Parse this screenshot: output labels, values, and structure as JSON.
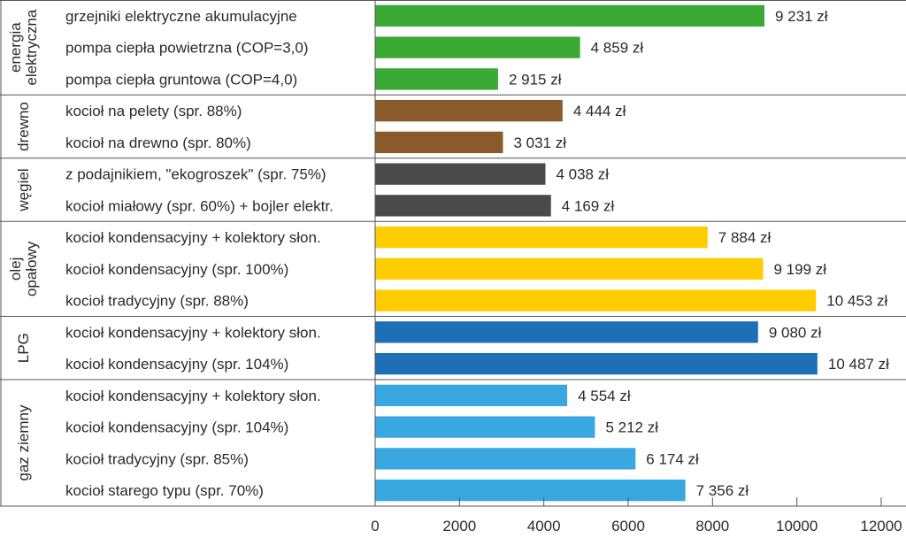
{
  "chart_data": {
    "type": "bar",
    "orientation": "horizontal",
    "title": "",
    "xlabel": "",
    "ylabel": "",
    "xlim": [
      0,
      12000
    ],
    "xticks": [
      0,
      2000,
      4000,
      6000,
      8000,
      10000,
      12000
    ],
    "value_suffix": " zł",
    "groups": [
      {
        "name": "energia elektryczna",
        "name_lines": [
          "energia",
          "elektryczna"
        ],
        "color": "#3aaa35",
        "items": [
          {
            "label": "grzejniki elektryczne akumulacyjne",
            "value": 9231,
            "value_label": "9 231 zł"
          },
          {
            "label": "pompa ciepła powietrzna (COP=3,0)",
            "value": 4859,
            "value_label": "4 859 zł"
          },
          {
            "label": "pompa ciepła gruntowa (COP=4,0)",
            "value": 2915,
            "value_label": "2 915 zł"
          }
        ]
      },
      {
        "name": "drewno",
        "name_lines": [
          "drewno"
        ],
        "color": "#8b5a2b",
        "items": [
          {
            "label": "kocioł na pelety (spr. 88%)",
            "value": 4444,
            "value_label": "4 444 zł"
          },
          {
            "label": "kocioł na drewno (spr. 80%)",
            "value": 3031,
            "value_label": "3 031 zł"
          }
        ]
      },
      {
        "name": "węgiel",
        "name_lines": [
          "węgiel"
        ],
        "color": "#4a4a4a",
        "items": [
          {
            "label": "z podajnikiem, \"ekogroszek\" (spr. 75%)",
            "value": 4038,
            "value_label": "4 038 zł"
          },
          {
            "label": "kocioł miałowy (spr. 60%) + bojler elektr.",
            "value": 4169,
            "value_label": "4 169 zł"
          }
        ]
      },
      {
        "name": "olej opałowy",
        "name_lines": [
          "olej",
          "opałowy"
        ],
        "color": "#ffcc00",
        "items": [
          {
            "label": "kocioł kondensacyjny + kolektory słon.",
            "value": 7884,
            "value_label": "7 884 zł"
          },
          {
            "label": "kocioł kondensacyjny (spr. 100%)",
            "value": 9199,
            "value_label": "9 199 zł"
          },
          {
            "label": "kocioł tradycyjny (spr. 88%)",
            "value": 10453,
            "value_label": "10 453 zł"
          }
        ]
      },
      {
        "name": "LPG",
        "name_lines": [
          "LPG"
        ],
        "color": "#1f6fb7",
        "items": [
          {
            "label": "kocioł kondensacyjny + kolektory słon.",
            "value": 9080,
            "value_label": "9 080 zł"
          },
          {
            "label": "kocioł kondensacyjny (spr. 104%)",
            "value": 10487,
            "value_label": "10 487 zł"
          }
        ]
      },
      {
        "name": "gaz ziemny",
        "name_lines": [
          "gaz ziemny"
        ],
        "color": "#3aa8e0",
        "items": [
          {
            "label": "kocioł kondensacyjny + kolektory słon.",
            "value": 4554,
            "value_label": "4 554 zł"
          },
          {
            "label": "kocioł kondensacyjny (spr. 104%)",
            "value": 5212,
            "value_label": "5 212 zł"
          },
          {
            "label": "kocioł tradycyjny (spr. 85%)",
            "value": 6174,
            "value_label": "6 174 zł"
          },
          {
            "label": "kocioł starego typu (spr. 70%)",
            "value": 7356,
            "value_label": "7 356 zł"
          }
        ]
      }
    ]
  }
}
